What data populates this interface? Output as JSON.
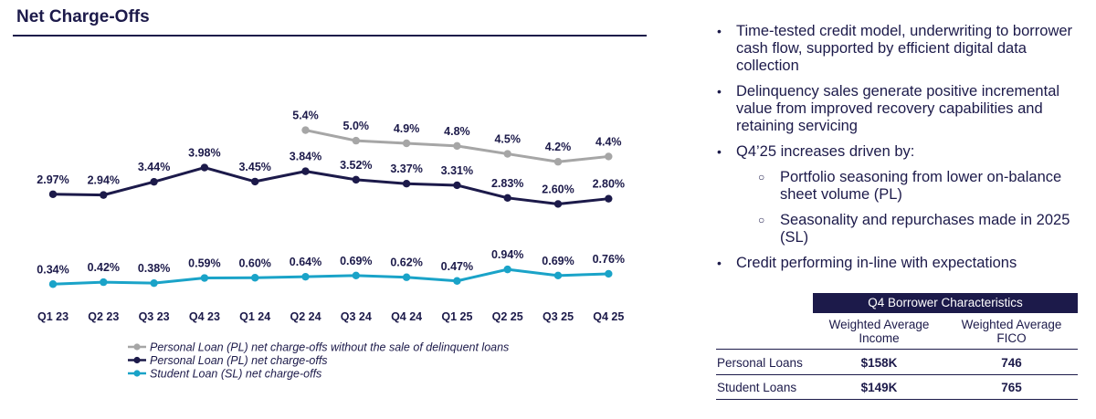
{
  "title": "Net Charge-Offs",
  "colors": {
    "navy": "#1c1a4a",
    "gray": "#a6a6a6",
    "teal": "#1aa3c8"
  },
  "chart_data": {
    "type": "line",
    "categories": [
      "Q1 23",
      "Q2 23",
      "Q3 23",
      "Q4 23",
      "Q1 24",
      "Q2 24",
      "Q3 24",
      "Q4 24",
      "Q1 25",
      "Q2 25",
      "Q3 25",
      "Q4 25"
    ],
    "series": [
      {
        "name": "Personal Loan (PL) net charge-offs without the sale of delinquent loans",
        "color": "#a6a6a6",
        "values": [
          null,
          null,
          null,
          null,
          null,
          5.4,
          5.0,
          4.9,
          4.8,
          4.5,
          4.2,
          4.4
        ],
        "labels": [
          null,
          null,
          null,
          null,
          null,
          "5.4%",
          "5.0%",
          "4.9%",
          "4.8%",
          "4.5%",
          "4.2%",
          "4.4%"
        ]
      },
      {
        "name": "Personal Loan (PL) net charge-offs",
        "color": "#1c1a4a",
        "values": [
          2.97,
          2.94,
          3.44,
          3.98,
          3.45,
          3.84,
          3.52,
          3.37,
          3.31,
          2.83,
          2.6,
          2.8
        ],
        "labels": [
          "2.97%",
          "2.94%",
          "3.44%",
          "3.98%",
          "3.45%",
          "3.84%",
          "3.52%",
          "3.37%",
          "3.31%",
          "2.83%",
          "2.60%",
          "2.80%"
        ]
      },
      {
        "name": "Student Loan (SL) net charge-offs",
        "color": "#1aa3c8",
        "values": [
          0.34,
          0.42,
          0.38,
          0.59,
          0.6,
          0.64,
          0.69,
          0.62,
          0.47,
          0.94,
          0.69,
          0.76
        ],
        "labels": [
          "0.34%",
          "0.42%",
          "0.38%",
          "0.59%",
          "0.60%",
          "0.64%",
          "0.69%",
          "0.62%",
          "0.47%",
          "0.94%",
          "0.69%",
          "0.76%"
        ]
      }
    ],
    "legend_position": "bottom-center"
  },
  "bullets": [
    {
      "type": "main",
      "text": "Time-tested credit model, underwriting to borrower cash flow, supported by efficient digital data collection"
    },
    {
      "type": "main",
      "text": "Delinquency sales generate positive incremental value from improved recovery capabilities and retaining servicing"
    },
    {
      "type": "main",
      "text": "Q4’25 increases driven by:"
    },
    {
      "type": "sub",
      "text": "Portfolio seasoning from lower on-balance sheet volume (PL)"
    },
    {
      "type": "sub",
      "text": "Seasonality and repurchases made in 2025 (SL)"
    },
    {
      "type": "main",
      "text": "Credit performing in-line with expectations"
    }
  ],
  "table": {
    "header": "Q4 Borrower Characteristics",
    "col1": "Weighted Average Income",
    "col2": "Weighted Average FICO",
    "rows": [
      {
        "label": "Personal Loans",
        "income": "$158K",
        "fico": "746"
      },
      {
        "label": "Student Loans",
        "income": "$149K",
        "fico": "765"
      }
    ]
  }
}
